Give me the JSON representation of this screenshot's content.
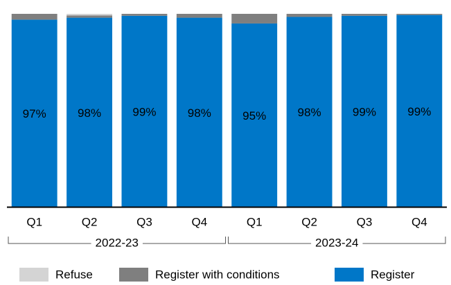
{
  "chart_data": {
    "type": "stacked_bar",
    "categories": [
      "Q1",
      "Q2",
      "Q3",
      "Q4",
      "Q1",
      "Q2",
      "Q3",
      "Q4"
    ],
    "groups": [
      "2022-23",
      "2023-24"
    ],
    "ylim": [
      0,
      100
    ],
    "series": [
      {
        "name": "Refuse",
        "color": "#d4d4d4",
        "values": [
          0,
          0.8,
          0,
          0,
          0,
          0,
          0,
          0
        ]
      },
      {
        "name": "Register with conditions",
        "color": "#7f7f7f",
        "values": [
          3,
          1.2,
          1,
          2,
          5,
          1.6,
          1,
          0.6
        ]
      },
      {
        "name": "Register",
        "color": "#0077c8",
        "values": [
          97,
          98,
          99,
          98,
          95,
          98.4,
          99,
          99.4
        ],
        "value_labels": [
          "97%",
          "98%",
          "99%",
          "98%",
          "95%",
          "98%",
          "99%",
          "99%"
        ]
      }
    ]
  }
}
